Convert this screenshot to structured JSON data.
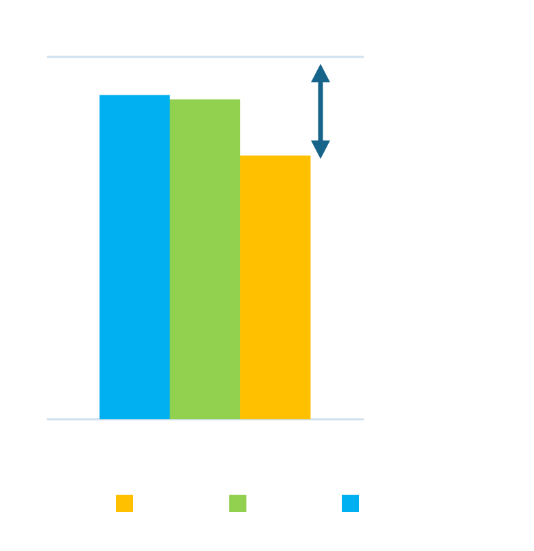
{
  "chart_data": {
    "type": "bar",
    "title": "",
    "xlabel": "",
    "ylabel": "",
    "ylim": [
      0,
      100
    ],
    "grid": true,
    "legend_placement": "bottom",
    "series": [
      {
        "value": 89.5,
        "color": "#00b0f0"
      },
      {
        "value": 88.3,
        "color": "#92d050"
      },
      {
        "value": 72.8,
        "color": "#ffc000"
      }
    ],
    "legend_order": [
      2,
      1,
      0
    ],
    "annotation": {
      "type": "double-arrow",
      "from": 100,
      "to": 72.8,
      "color": "#17648a"
    }
  }
}
